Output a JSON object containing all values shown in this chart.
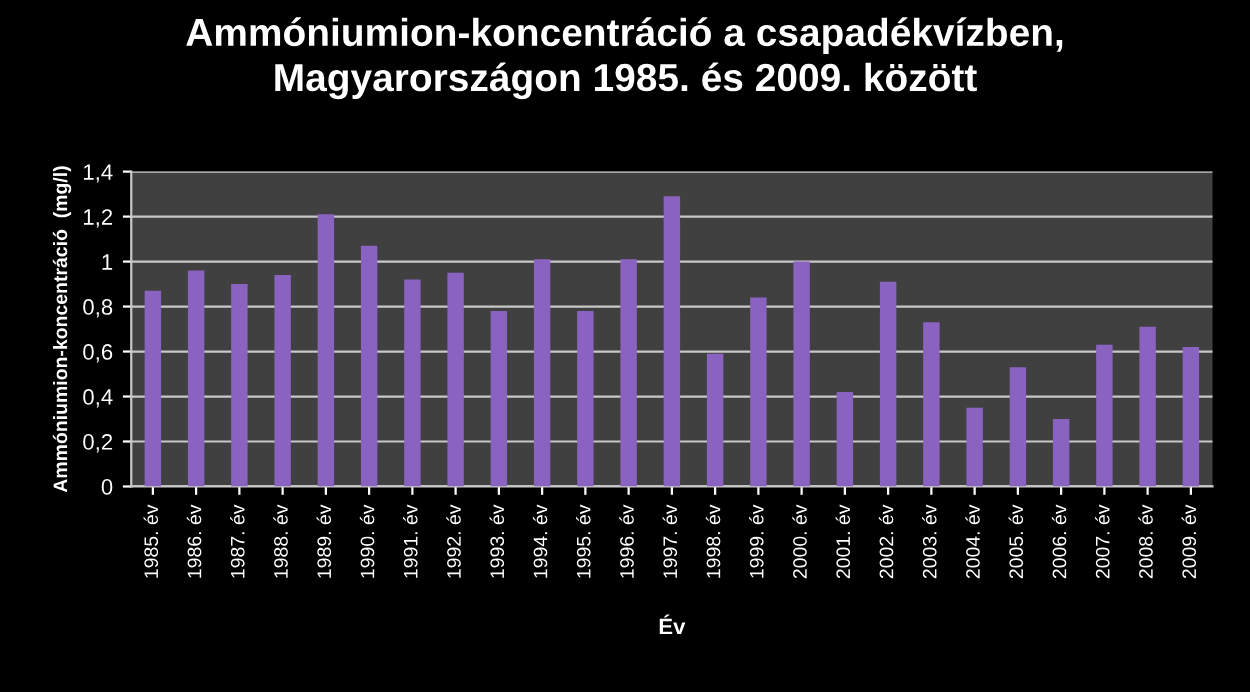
{
  "chart_data": {
    "type": "bar",
    "title": "Ammóniumion-koncentráció a csapadékvízben,\nMagyarországon 1985. és 2009. között",
    "xlabel": "Év",
    "ylabel": "Ammóniumion-koncentráció  (mg/l)",
    "categories": [
      "1985. év",
      "1986. év",
      "1987. év",
      "1988. év",
      "1989. év",
      "1990. év",
      "1991. év",
      "1992. év",
      "1993. év",
      "1994. év",
      "1995. év",
      "1996. év",
      "1997. év",
      "1998. év",
      "1999. év",
      "2000. év",
      "2001. év",
      "2002. év",
      "2003. év",
      "2004. év",
      "2005. év",
      "2006. év",
      "2007. év",
      "2008. év",
      "2009. év"
    ],
    "values": [
      0.87,
      0.96,
      0.9,
      0.94,
      1.21,
      1.07,
      0.92,
      0.95,
      0.78,
      1.01,
      0.78,
      1.01,
      1.29,
      0.59,
      0.84,
      1.0,
      0.42,
      0.91,
      0.73,
      0.35,
      0.53,
      0.3,
      0.63,
      0.71,
      0.62
    ],
    "color": "#8a63c0",
    "ylim": [
      0,
      1.4
    ],
    "yticks": [
      0,
      {
        "value": 0.2,
        "label": "0,2"
      },
      {
        "value": 0.4,
        "label": "0,4"
      },
      {
        "value": 0.6,
        "label": "0,6"
      },
      {
        "value": 0.8,
        "label": "0,8"
      },
      1,
      {
        "value": 1.2,
        "label": "1,2"
      },
      {
        "value": 1.4,
        "label": "1,4"
      }
    ],
    "grid": "y"
  }
}
